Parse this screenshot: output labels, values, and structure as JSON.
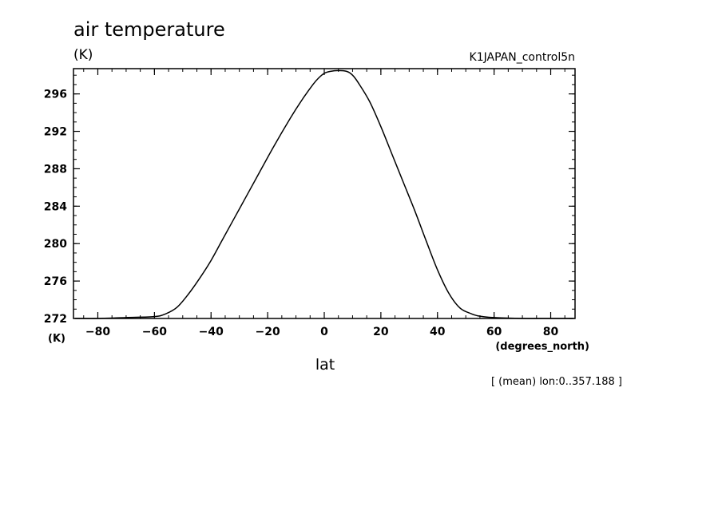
{
  "chart_data": {
    "type": "line",
    "title": "air temperature",
    "units_top": "(K)",
    "run_name": "K1JAPAN_control5n",
    "ylabel": "(K)",
    "xlabel": "lat",
    "x_units": "(degrees_north)",
    "note": "[ (mean) lon:0..357.188 ]",
    "xlim": [
      -88.6,
      88.6
    ],
    "ylim": [
      272,
      298.7
    ],
    "x_ticks": [
      -80,
      -60,
      -40,
      -20,
      0,
      20,
      40,
      60,
      80
    ],
    "x_tick_labels": [
      "−80",
      "−60",
      "−40",
      "−20",
      "0",
      "20",
      "40",
      "60",
      "80"
    ],
    "y_ticks": [
      272,
      276,
      280,
      284,
      288,
      292,
      296
    ],
    "y_tick_labels": [
      "272",
      "276",
      "280",
      "284",
      "288",
      "292",
      "296"
    ],
    "series": [
      {
        "x": [
          -88,
          -80,
          -70,
          -60,
          -56,
          -52,
          -48,
          -44,
          -40,
          -36,
          -30,
          -24,
          -18,
          -12,
          -8,
          -4,
          -2,
          0,
          2,
          5,
          8,
          10,
          12,
          16,
          20,
          24,
          28,
          32,
          36,
          40,
          44,
          48,
          52,
          54,
          56,
          60,
          70,
          80,
          88
        ],
        "y": [
          272.0,
          272.0,
          272.1,
          272.2,
          272.5,
          273.2,
          274.6,
          276.3,
          278.2,
          280.4,
          283.7,
          287.0,
          290.3,
          293.4,
          295.3,
          297.0,
          297.7,
          298.2,
          298.4,
          298.5,
          298.4,
          298.0,
          297.2,
          295.2,
          292.5,
          289.5,
          286.5,
          283.5,
          280.3,
          277.2,
          274.7,
          273.1,
          272.5,
          272.3,
          272.2,
          272.1,
          272.0,
          272.0,
          272.0
        ]
      }
    ]
  }
}
